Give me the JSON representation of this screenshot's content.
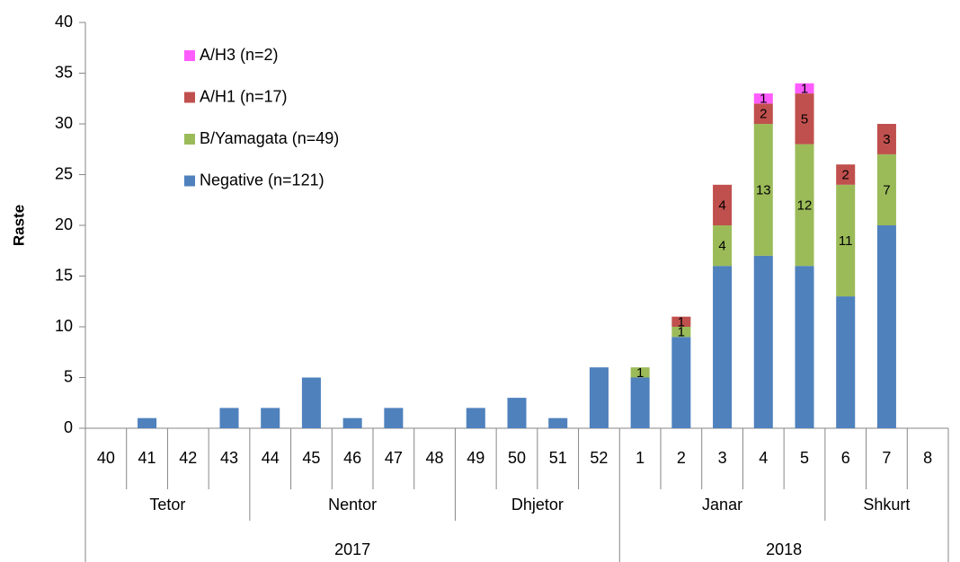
{
  "chart_data": {
    "type": "stacked_bar",
    "y_label": "Raste",
    "categories": [
      "40",
      "41",
      "42",
      "43",
      "44",
      "45",
      "46",
      "47",
      "48",
      "49",
      "50",
      "51",
      "52",
      "1",
      "2",
      "3",
      "4",
      "5",
      "6",
      "7",
      "8"
    ],
    "category_groups": [
      {
        "label": "Tetor",
        "span": 4
      },
      {
        "label": "Nentor",
        "span": 5
      },
      {
        "label": "Dhjetor",
        "span": 4
      },
      {
        "label": "Janar",
        "span": 5
      },
      {
        "label": "Shkurt",
        "span": 3
      }
    ],
    "year_groups": [
      {
        "label": "2017",
        "span": 13
      },
      {
        "label": "2018",
        "span": 8
      }
    ],
    "series": [
      {
        "name": "Negative (n=121)",
        "color": "#4f81bd",
        "data_labels": false,
        "values": [
          0,
          1,
          0,
          2,
          2,
          5,
          1,
          2,
          0,
          2,
          3,
          1,
          6,
          5,
          9,
          16,
          17,
          16,
          13,
          20,
          0
        ]
      },
      {
        "name": "B/Yamagata (n=49)",
        "color": "#9bbb59",
        "data_labels": true,
        "values": [
          null,
          null,
          null,
          null,
          null,
          null,
          null,
          null,
          null,
          null,
          null,
          null,
          null,
          1,
          1,
          4,
          13,
          12,
          11,
          7,
          null
        ]
      },
      {
        "name": "A/H1 (n=17)",
        "color": "#c0504d",
        "data_labels": true,
        "values": [
          null,
          null,
          null,
          null,
          null,
          null,
          null,
          null,
          null,
          null,
          null,
          null,
          null,
          null,
          1,
          4,
          2,
          5,
          2,
          3,
          null
        ]
      },
      {
        "name": "A/H3 (n=2)",
        "color": "#ff5cff",
        "data_labels": true,
        "values": [
          null,
          null,
          null,
          null,
          null,
          null,
          null,
          null,
          null,
          null,
          null,
          null,
          null,
          null,
          null,
          null,
          1,
          1,
          null,
          null,
          null
        ]
      }
    ],
    "ylim": [
      0,
      40
    ],
    "yticks": [
      0,
      5,
      10,
      15,
      20,
      25,
      30,
      35,
      40
    ],
    "grid": false,
    "legend": "upper left"
  }
}
